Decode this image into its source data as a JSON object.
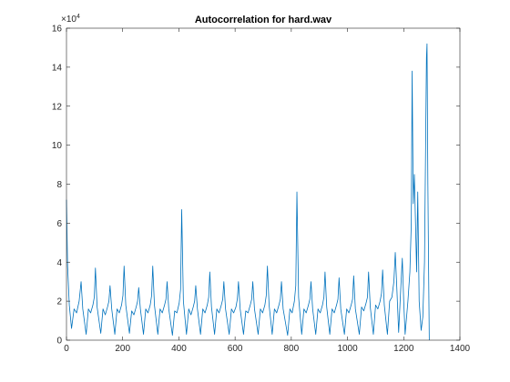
{
  "chart_data": {
    "type": "line",
    "title": "Autocorrelation for hard.wav",
    "y_multiplier": "×10",
    "y_multiplier_exponent": "4",
    "color": "#0072bd",
    "xlim": [
      0,
      1400
    ],
    "xticks": [
      0,
      200,
      400,
      600,
      800,
      1000,
      1200,
      1400
    ],
    "ylim": [
      0,
      16
    ],
    "yticks": [
      0,
      2,
      4,
      6,
      8,
      10,
      12,
      14,
      16
    ],
    "x": [
      0,
      4,
      10,
      18,
      27,
      36,
      45,
      52,
      58,
      70,
      78,
      86,
      94,
      99,
      103,
      109,
      122,
      130,
      138,
      146,
      151,
      155,
      161,
      172,
      180,
      188,
      196,
      201,
      205,
      211,
      224,
      232,
      240,
      248,
      253,
      257,
      263,
      274,
      282,
      290,
      298,
      303,
      307,
      313,
      325,
      333,
      341,
      349,
      354,
      358,
      364,
      377,
      385,
      393,
      401,
      406,
      410,
      416,
      427,
      435,
      443,
      451,
      456,
      460,
      466,
      477,
      485,
      493,
      501,
      506,
      510,
      516,
      527,
      535,
      543,
      551,
      556,
      560,
      566,
      579,
      587,
      595,
      603,
      608,
      612,
      618,
      630,
      638,
      646,
      654,
      659,
      663,
      669,
      682,
      690,
      698,
      706,
      711,
      715,
      721,
      732,
      740,
      748,
      756,
      761,
      765,
      771,
      787,
      795,
      803,
      811,
      816,
      820,
      826,
      837,
      845,
      853,
      861,
      866,
      870,
      876,
      887,
      895,
      903,
      911,
      916,
      920,
      926,
      937,
      945,
      953,
      961,
      966,
      970,
      976,
      989,
      997,
      1005,
      1013,
      1018,
      1022,
      1028,
      1042,
      1050,
      1058,
      1066,
      1071,
      1075,
      1081,
      1092,
      1100,
      1108,
      1116,
      1121,
      1125,
      1131,
      1142,
      1150,
      1158,
      1165,
      1170,
      1176,
      1182,
      1190,
      1195,
      1200,
      1205,
      1215,
      1222,
      1227,
      1230,
      1234,
      1238,
      1242,
      1246,
      1250,
      1255,
      1262,
      1268,
      1274,
      1278,
      1281,
      1283,
      1286,
      1289,
      1291
    ],
    "values": [
      7.2,
      3.8,
      1.8,
      0.6,
      1.6,
      1.4,
      2.0,
      3.0,
      1.6,
      0.3,
      1.6,
      1.4,
      1.8,
      2.2,
      3.7,
      1.7,
      0.35,
      1.6,
      1.3,
      1.7,
      2.0,
      2.8,
      1.6,
      0.3,
      1.6,
      1.4,
      1.8,
      2.3,
      3.8,
      1.8,
      0.35,
      1.5,
      1.3,
      1.7,
      2.0,
      2.7,
      1.6,
      0.3,
      1.6,
      1.4,
      1.8,
      2.3,
      3.8,
      1.8,
      0.3,
      1.6,
      1.4,
      1.8,
      2.1,
      3.0,
      1.6,
      0.25,
      1.5,
      1.4,
      1.9,
      2.6,
      6.7,
      2.0,
      0.3,
      1.6,
      1.3,
      1.7,
      2.0,
      2.8,
      1.6,
      0.3,
      1.6,
      1.4,
      1.8,
      2.2,
      3.5,
      1.7,
      0.3,
      1.6,
      1.4,
      1.8,
      2.1,
      3.0,
      1.6,
      0.3,
      1.6,
      1.4,
      1.7,
      2.1,
      3.0,
      1.6,
      0.3,
      1.5,
      1.4,
      1.8,
      2.1,
      3.0,
      1.6,
      0.3,
      1.6,
      1.4,
      1.8,
      2.3,
      3.8,
      1.8,
      0.3,
      1.6,
      1.4,
      1.8,
      2.1,
      3.0,
      1.6,
      0.25,
      1.6,
      1.4,
      2.0,
      2.8,
      7.6,
      2.2,
      0.3,
      1.6,
      1.4,
      1.8,
      2.1,
      3.0,
      1.6,
      0.3,
      1.6,
      1.4,
      1.8,
      2.2,
      3.5,
      1.7,
      0.3,
      1.6,
      1.4,
      1.8,
      2.1,
      3.2,
      1.6,
      0.3,
      1.6,
      1.4,
      1.8,
      2.1,
      3.3,
      1.6,
      0.3,
      1.7,
      1.5,
      1.9,
      2.2,
      3.5,
      1.7,
      0.3,
      1.8,
      1.6,
      2.0,
      2.4,
      3.6,
      1.8,
      0.3,
      2.0,
      2.2,
      3.0,
      4.5,
      2.5,
      0.4,
      2.8,
      4.2,
      2.0,
      0.3,
      2.0,
      3.5,
      6.0,
      13.8,
      7.0,
      8.5,
      6.0,
      3.5,
      7.6,
      2.0,
      0.5,
      1.2,
      4.0,
      10.0,
      14.5,
      15.2,
      8.0,
      3.0,
      0
    ]
  }
}
